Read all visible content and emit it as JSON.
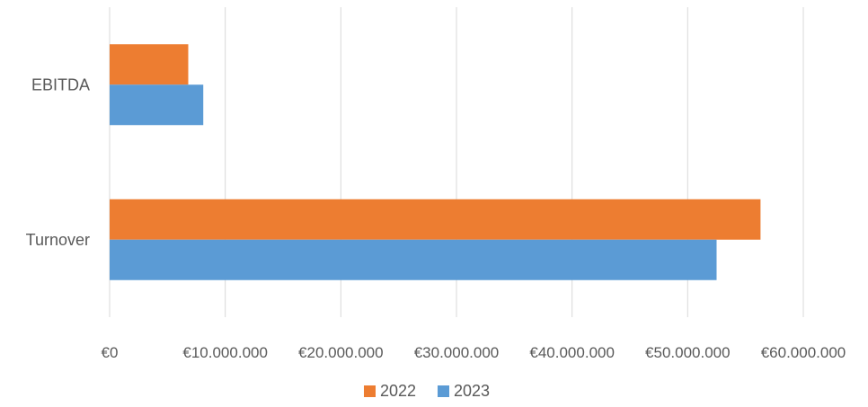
{
  "chart_data": {
    "type": "bar",
    "orientation": "horizontal",
    "categories": [
      "Turnover",
      "EBITDA"
    ],
    "series": [
      {
        "name": "2022",
        "color": "#ED7D31",
        "values": [
          56300000,
          6800000
        ]
      },
      {
        "name": "2023",
        "color": "#5B9BD5",
        "values": [
          52500000,
          8100000
        ]
      }
    ],
    "xlim": [
      0,
      60000000
    ],
    "x_ticks": [
      0,
      10000000,
      20000000,
      30000000,
      40000000,
      50000000,
      60000000
    ],
    "x_tick_labels": [
      "€0",
      "€10.000.000",
      "€20.000.000",
      "€30.000.000",
      "€40.000.000",
      "€50.000.000",
      "€60.000.000"
    ],
    "grid": "vertical",
    "legend_position": "bottom",
    "gridline_color": "#D9D9D9"
  }
}
